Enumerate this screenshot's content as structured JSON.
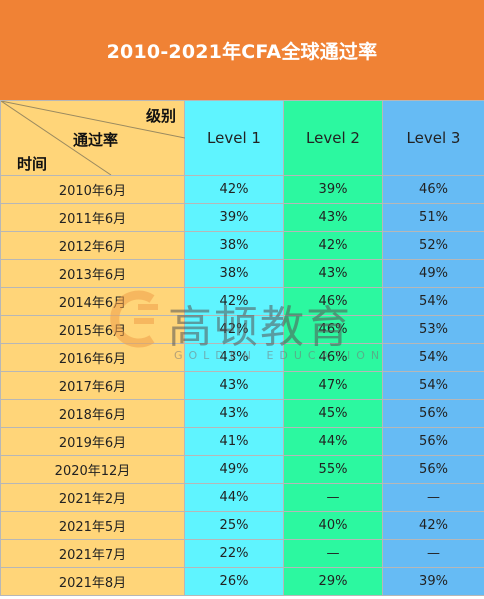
{
  "banner": {
    "title": "2010-2021年CFA全球通过率"
  },
  "header": {
    "corner_top": "级别",
    "corner_mid": "通过率",
    "corner_bottom": "时间",
    "levels": [
      "Level 1",
      "Level 2",
      "Level 3"
    ]
  },
  "rows": [
    {
      "date": "2010年6月",
      "l1": "42%",
      "l2": "39%",
      "l3": "46%"
    },
    {
      "date": "2011年6月",
      "l1": "39%",
      "l2": "43%",
      "l3": "51%"
    },
    {
      "date": "2012年6月",
      "l1": "38%",
      "l2": "42%",
      "l3": "52%"
    },
    {
      "date": "2013年6月",
      "l1": "38%",
      "l2": "43%",
      "l3": "49%"
    },
    {
      "date": "2014年6月",
      "l1": "42%",
      "l2": "46%",
      "l3": "54%"
    },
    {
      "date": "2015年6月",
      "l1": "42%",
      "l2": "46%",
      "l3": "53%"
    },
    {
      "date": "2016年6月",
      "l1": "43%",
      "l2": "46%",
      "l3": "54%"
    },
    {
      "date": "2017年6月",
      "l1": "43%",
      "l2": "47%",
      "l3": "54%"
    },
    {
      "date": "2018年6月",
      "l1": "43%",
      "l2": "45%",
      "l3": "56%"
    },
    {
      "date": "2019年6月",
      "l1": "41%",
      "l2": "44%",
      "l3": "56%"
    },
    {
      "date": "2020年12月",
      "l1": "49%",
      "l2": "55%",
      "l3": "56%"
    },
    {
      "date": "2021年2月",
      "l1": "44%",
      "l2": "—",
      "l3": "—"
    },
    {
      "date": "2021年5月",
      "l1": "25%",
      "l2": "40%",
      "l3": "42%"
    },
    {
      "date": "2021年7月",
      "l1": "22%",
      "l2": "—",
      "l3": "—"
    },
    {
      "date": "2021年8月",
      "l1": "26%",
      "l2": "29%",
      "l3": "39%"
    }
  ],
  "watermark": {
    "cn": "高顿教育",
    "en": "GOLDEN EDUCATION"
  },
  "colors": {
    "banner": "#f08235",
    "date_col": "#ffd579",
    "level1": "#5ff4ff",
    "level2": "#2cf8a0",
    "level3": "#66bbf4"
  }
}
